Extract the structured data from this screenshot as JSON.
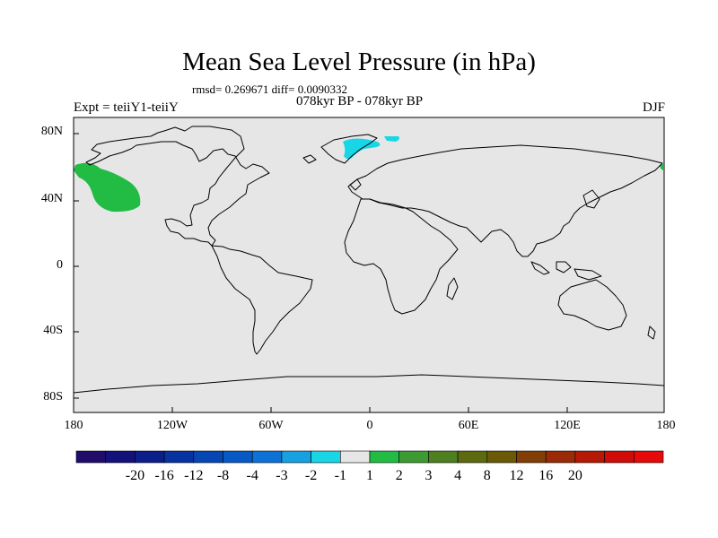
{
  "title": "Mean Sea Level Pressure (in hPa)",
  "stats_line": "rmsd= 0.269671 diff= 0.0090332",
  "period_line": "078kyr BP - 078kyr BP",
  "left_label": "Expt = teiiY1-teiiY",
  "right_label": "DJF",
  "map": {
    "ocean_color": "#e6e6e6",
    "coast_color": "#000000",
    "lat_ticks": [
      "80N",
      "40N",
      "0",
      "40S",
      "80S"
    ],
    "lon_ticks": [
      "180",
      "120W",
      "60W",
      "0",
      "60E",
      "120E",
      "180"
    ],
    "anomalies": [
      {
        "name": "north-pacific-positive",
        "color": "#22bb44"
      },
      {
        "name": "arctic-negative",
        "color": "#18d6e6"
      }
    ]
  },
  "colorbar": {
    "colors": [
      "#200d6b",
      "#14117a",
      "#0b1e8a",
      "#0832a0",
      "#0647b4",
      "#075ac6",
      "#0d72d6",
      "#17a1e0",
      "#18d6e6",
      "#e6e6e6",
      "#22bb44",
      "#3e9a32",
      "#4e7f20",
      "#5e6a10",
      "#6b5a05",
      "#823e07",
      "#9b2a07",
      "#b51a07",
      "#cf0c08",
      "#e60a0a"
    ],
    "labels": [
      "-20",
      "-16",
      "-12",
      "-8",
      "-4",
      "-3",
      "-2",
      "-1",
      "1",
      "2",
      "3",
      "4",
      "8",
      "12",
      "16",
      "20"
    ]
  }
}
